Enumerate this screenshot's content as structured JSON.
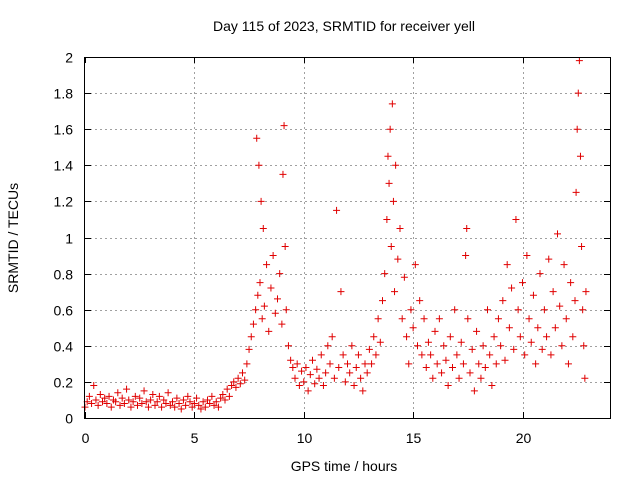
{
  "chart_data": {
    "type": "scatter",
    "title": "Day 115 of 2023, SRMTID for receiver yell",
    "xlabel": "GPS time / hours",
    "ylabel": "SRMTID / TECUs",
    "xlim": [
      0,
      24
    ],
    "ylim": [
      0,
      2
    ],
    "xticks": [
      0,
      5,
      10,
      15,
      20
    ],
    "yticks": [
      0,
      0.2,
      0.4,
      0.6,
      0.8,
      1,
      1.2,
      1.4,
      1.6,
      1.8,
      2
    ],
    "xtick_labels": [
      "0",
      "5",
      "10",
      "15",
      "20"
    ],
    "ytick_labels": [
      "0",
      "0.2",
      "0.4",
      "0.6",
      "0.8",
      "1",
      "1.2",
      "1.4",
      "1.6",
      "1.8",
      "2"
    ],
    "grid": true,
    "marker": "+",
    "color": "#e00000",
    "series": [
      {
        "name": "SRMTID",
        "points": [
          [
            0.0,
            0.06
          ],
          [
            0.1,
            0.09
          ],
          [
            0.2,
            0.12
          ],
          [
            0.3,
            0.08
          ],
          [
            0.4,
            0.18
          ],
          [
            0.5,
            0.1
          ],
          [
            0.6,
            0.07
          ],
          [
            0.7,
            0.13
          ],
          [
            0.8,
            0.09
          ],
          [
            0.9,
            0.11
          ],
          [
            1.0,
            0.08
          ],
          [
            1.1,
            0.12
          ],
          [
            1.2,
            0.06
          ],
          [
            1.3,
            0.1
          ],
          [
            1.4,
            0.09
          ],
          [
            1.5,
            0.14
          ],
          [
            1.6,
            0.07
          ],
          [
            1.7,
            0.11
          ],
          [
            1.8,
            0.08
          ],
          [
            1.9,
            0.16
          ],
          [
            2.0,
            0.1
          ],
          [
            2.1,
            0.06
          ],
          [
            2.2,
            0.09
          ],
          [
            2.3,
            0.12
          ],
          [
            2.4,
            0.07
          ],
          [
            2.5,
            0.11
          ],
          [
            2.6,
            0.08
          ],
          [
            2.7,
            0.15
          ],
          [
            2.8,
            0.09
          ],
          [
            2.9,
            0.06
          ],
          [
            3.0,
            0.1
          ],
          [
            3.1,
            0.13
          ],
          [
            3.2,
            0.07
          ],
          [
            3.3,
            0.09
          ],
          [
            3.4,
            0.12
          ],
          [
            3.5,
            0.06
          ],
          [
            3.6,
            0.1
          ],
          [
            3.7,
            0.08
          ],
          [
            3.8,
            0.14
          ],
          [
            3.9,
            0.07
          ],
          [
            4.0,
            0.09
          ],
          [
            4.1,
            0.06
          ],
          [
            4.2,
            0.11
          ],
          [
            4.3,
            0.08
          ],
          [
            4.4,
            0.05
          ],
          [
            4.5,
            0.1
          ],
          [
            4.6,
            0.07
          ],
          [
            4.7,
            0.12
          ],
          [
            4.8,
            0.09
          ],
          [
            4.9,
            0.06
          ],
          [
            5.0,
            0.08
          ],
          [
            5.1,
            0.11
          ],
          [
            5.2,
            0.07
          ],
          [
            5.3,
            0.05
          ],
          [
            5.4,
            0.09
          ],
          [
            5.5,
            0.06
          ],
          [
            5.6,
            0.1
          ],
          [
            5.7,
            0.08
          ],
          [
            5.8,
            0.12
          ],
          [
            5.9,
            0.07
          ],
          [
            6.0,
            0.09
          ],
          [
            6.1,
            0.06
          ],
          [
            6.2,
            0.11
          ],
          [
            6.3,
            0.13
          ],
          [
            6.4,
            0.1
          ],
          [
            6.5,
            0.16
          ],
          [
            6.6,
            0.12
          ],
          [
            6.7,
            0.18
          ],
          [
            6.8,
            0.2
          ],
          [
            6.9,
            0.17
          ],
          [
            7.0,
            0.22
          ],
          [
            7.1,
            0.19
          ],
          [
            7.2,
            0.25
          ],
          [
            7.3,
            0.21
          ],
          [
            7.4,
            0.3
          ],
          [
            7.5,
            0.38
          ],
          [
            7.6,
            0.45
          ],
          [
            7.7,
            0.52
          ],
          [
            7.8,
            0.6
          ],
          [
            7.85,
            1.55
          ],
          [
            7.9,
            0.68
          ],
          [
            7.95,
            1.4
          ],
          [
            8.0,
            0.75
          ],
          [
            8.05,
            1.2
          ],
          [
            8.1,
            0.55
          ],
          [
            8.15,
            1.05
          ],
          [
            8.2,
            0.62
          ],
          [
            8.3,
            0.85
          ],
          [
            8.4,
            0.48
          ],
          [
            8.5,
            0.72
          ],
          [
            8.6,
            0.9
          ],
          [
            8.7,
            0.58
          ],
          [
            8.8,
            0.66
          ],
          [
            8.9,
            0.8
          ],
          [
            9.0,
            0.52
          ],
          [
            9.05,
            1.35
          ],
          [
            9.1,
            1.62
          ],
          [
            9.15,
            0.95
          ],
          [
            9.2,
            0.6
          ],
          [
            9.3,
            0.4
          ],
          [
            9.4,
            0.32
          ],
          [
            9.5,
            0.28
          ],
          [
            9.6,
            0.22
          ],
          [
            9.7,
            0.3
          ],
          [
            9.8,
            0.18
          ],
          [
            9.9,
            0.26
          ],
          [
            10.0,
            0.2
          ],
          [
            10.1,
            0.28
          ],
          [
            10.2,
            0.15
          ],
          [
            10.3,
            0.24
          ],
          [
            10.4,
            0.32
          ],
          [
            10.5,
            0.19
          ],
          [
            10.6,
            0.27
          ],
          [
            10.7,
            0.22
          ],
          [
            10.8,
            0.35
          ],
          [
            10.9,
            0.18
          ],
          [
            11.0,
            0.25
          ],
          [
            11.1,
            0.4
          ],
          [
            11.2,
            0.3
          ],
          [
            11.3,
            0.45
          ],
          [
            11.4,
            0.22
          ],
          [
            11.5,
            1.15
          ],
          [
            11.6,
            0.28
          ],
          [
            11.7,
            0.7
          ],
          [
            11.8,
            0.35
          ],
          [
            11.9,
            0.2
          ],
          [
            12.0,
            0.3
          ],
          [
            12.1,
            0.25
          ],
          [
            12.2,
            0.4
          ],
          [
            12.3,
            0.18
          ],
          [
            12.4,
            0.28
          ],
          [
            12.5,
            0.35
          ],
          [
            12.6,
            0.22
          ],
          [
            12.7,
            0.15
          ],
          [
            12.8,
            0.3
          ],
          [
            12.9,
            0.25
          ],
          [
            13.0,
            0.38
          ],
          [
            13.1,
            0.3
          ],
          [
            13.2,
            0.45
          ],
          [
            13.3,
            0.35
          ],
          [
            13.4,
            0.55
          ],
          [
            13.5,
            0.42
          ],
          [
            13.6,
            0.65
          ],
          [
            13.7,
            0.8
          ],
          [
            13.8,
            1.1
          ],
          [
            13.85,
            1.45
          ],
          [
            13.9,
            1.3
          ],
          [
            13.95,
            1.6
          ],
          [
            14.0,
            0.95
          ],
          [
            14.05,
            1.74
          ],
          [
            14.1,
            1.2
          ],
          [
            14.15,
            0.7
          ],
          [
            14.2,
            1.4
          ],
          [
            14.3,
            0.88
          ],
          [
            14.4,
            1.05
          ],
          [
            14.5,
            0.55
          ],
          [
            14.6,
            0.78
          ],
          [
            14.7,
            0.45
          ],
          [
            14.8,
            0.3
          ],
          [
            14.9,
            0.6
          ],
          [
            15.0,
            0.5
          ],
          [
            15.1,
            0.85
          ],
          [
            15.2,
            0.4
          ],
          [
            15.3,
            0.65
          ],
          [
            15.4,
            0.35
          ],
          [
            15.5,
            0.55
          ],
          [
            15.6,
            0.28
          ],
          [
            15.7,
            0.42
          ],
          [
            15.8,
            0.35
          ],
          [
            15.9,
            0.22
          ],
          [
            16.0,
            0.48
          ],
          [
            16.1,
            0.3
          ],
          [
            16.2,
            0.55
          ],
          [
            16.3,
            0.25
          ],
          [
            16.4,
            0.4
          ],
          [
            16.5,
            0.32
          ],
          [
            16.6,
            0.18
          ],
          [
            16.7,
            0.45
          ],
          [
            16.8,
            0.28
          ],
          [
            16.9,
            0.6
          ],
          [
            17.0,
            0.35
          ],
          [
            17.1,
            0.22
          ],
          [
            17.2,
            0.42
          ],
          [
            17.3,
            0.3
          ],
          [
            17.4,
            0.9
          ],
          [
            17.45,
            1.05
          ],
          [
            17.5,
            0.55
          ],
          [
            17.6,
            0.25
          ],
          [
            17.7,
            0.38
          ],
          [
            17.8,
            0.15
          ],
          [
            17.9,
            0.48
          ],
          [
            18.0,
            0.3
          ],
          [
            18.1,
            0.22
          ],
          [
            18.2,
            0.4
          ],
          [
            18.3,
            0.28
          ],
          [
            18.4,
            0.6
          ],
          [
            18.5,
            0.35
          ],
          [
            18.6,
            0.18
          ],
          [
            18.7,
            0.45
          ],
          [
            18.8,
            0.3
          ],
          [
            18.9,
            0.55
          ],
          [
            19.0,
            0.4
          ],
          [
            19.1,
            0.65
          ],
          [
            19.2,
            0.32
          ],
          [
            19.3,
            0.85
          ],
          [
            19.4,
            0.5
          ],
          [
            19.5,
            0.72
          ],
          [
            19.6,
            0.38
          ],
          [
            19.7,
            1.1
          ],
          [
            19.8,
            0.6
          ],
          [
            19.9,
            0.45
          ],
          [
            20.0,
            0.75
          ],
          [
            20.1,
            0.35
          ],
          [
            20.2,
            0.9
          ],
          [
            20.3,
            0.55
          ],
          [
            20.4,
            0.42
          ],
          [
            20.5,
            0.68
          ],
          [
            20.6,
            0.3
          ],
          [
            20.7,
            0.5
          ],
          [
            20.8,
            0.8
          ],
          [
            20.9,
            0.38
          ],
          [
            21.0,
            0.6
          ],
          [
            21.1,
            0.45
          ],
          [
            21.2,
            0.88
          ],
          [
            21.3,
            0.35
          ],
          [
            21.4,
            0.7
          ],
          [
            21.5,
            0.5
          ],
          [
            21.6,
            1.02
          ],
          [
            21.7,
            0.62
          ],
          [
            21.8,
            0.4
          ],
          [
            21.9,
            0.85
          ],
          [
            22.0,
            0.55
          ],
          [
            22.1,
            0.3
          ],
          [
            22.2,
            0.75
          ],
          [
            22.3,
            0.45
          ],
          [
            22.4,
            0.65
          ],
          [
            22.45,
            1.25
          ],
          [
            22.5,
            1.6
          ],
          [
            22.55,
            1.8
          ],
          [
            22.6,
            1.98
          ],
          [
            22.65,
            1.45
          ],
          [
            22.7,
            0.95
          ],
          [
            22.75,
            0.6
          ],
          [
            22.8,
            0.4
          ],
          [
            22.85,
            0.22
          ],
          [
            22.9,
            0.7
          ]
        ]
      }
    ]
  }
}
